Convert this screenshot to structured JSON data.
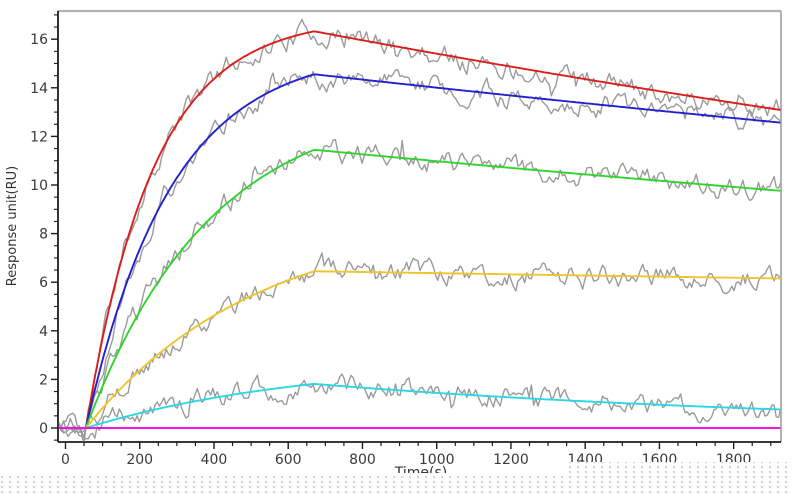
{
  "figure": {
    "description_label": "SPR sensorgram with kinetic fit curves over noisy response traces"
  },
  "colors": {
    "axis": "#1c1c1c",
    "frame_border": "#b2b2b2",
    "tick_text": "#3a3a3a",
    "title_text": "#333333",
    "gray_trace": "#9b9b9b",
    "pattern_dot_dark": "#c6c6c6",
    "pattern_dot_light": "#dcdcdc",
    "plot_background": "#ffffff"
  },
  "chart_data": {
    "type": "line",
    "title": "",
    "xlabel": "Time(s)",
    "ylabel": "Response unit(RU)",
    "xlim": [
      -23,
      1929
    ],
    "ylim": [
      -0.58,
      17.2
    ],
    "x_major_ticks": [
      0,
      200,
      400,
      600,
      800,
      1000,
      1200,
      1400,
      1600,
      1800
    ],
    "x_minor_step": 50,
    "x_minor_range": [
      50,
      1900
    ],
    "y_major_ticks": [
      0,
      2,
      4,
      6,
      8,
      10,
      12,
      14,
      16
    ],
    "y_minor_step": 0.5,
    "y_minor_range": [
      -0.5,
      17
    ],
    "grid": false,
    "legend": null,
    "association_start_s": 55,
    "association_end_s": 670,
    "series": [
      {
        "name": "fit-curve-red",
        "color": "#dd1c1c",
        "model": {
          "t0": 55,
          "t1": 670,
          "Req": 16.9,
          "kobs": 0.0055,
          "kd": 0.000176
        },
        "points": [
          [
            55,
            0
          ],
          [
            150,
            6.9
          ],
          [
            250,
            11.1
          ],
          [
            350,
            13.6
          ],
          [
            450,
            15.0
          ],
          [
            550,
            15.8
          ],
          [
            670,
            16.3
          ],
          [
            900,
            15.7
          ],
          [
            1200,
            14.9
          ],
          [
            1500,
            14.1
          ],
          [
            1935,
            13.1
          ]
        ]
      },
      {
        "name": "fit-curve-blue",
        "color": "#2121cf",
        "model": {
          "t0": 55,
          "t1": 670,
          "Req": 15.6,
          "kobs": 0.0044,
          "kd": 0.000117
        },
        "points": [
          [
            55,
            0
          ],
          [
            150,
            5.3
          ],
          [
            250,
            9.0
          ],
          [
            350,
            11.3
          ],
          [
            450,
            12.9
          ],
          [
            550,
            13.8
          ],
          [
            670,
            14.6
          ],
          [
            900,
            14.2
          ],
          [
            1200,
            13.7
          ],
          [
            1500,
            13.2
          ],
          [
            1935,
            12.5
          ]
        ]
      },
      {
        "name": "fit-curve-green",
        "color": "#2ed52e",
        "model": {
          "t0": 55,
          "t1": 670,
          "Req": 13.6,
          "kobs": 0.003,
          "kd": 0.000127
        },
        "points": [
          [
            55,
            0
          ],
          [
            150,
            3.4
          ],
          [
            250,
            6.0
          ],
          [
            350,
            8.0
          ],
          [
            450,
            9.4
          ],
          [
            550,
            10.5
          ],
          [
            670,
            11.5
          ],
          [
            900,
            11.1
          ],
          [
            1200,
            10.7
          ],
          [
            1500,
            10.3
          ],
          [
            1935,
            9.8
          ]
        ]
      },
      {
        "name": "fit-curve-yellow",
        "color": "#eec52b",
        "model": {
          "t0": 55,
          "t1": 670,
          "Req": 8.7,
          "kobs": 0.0022,
          "kd": 3.75e-05
        },
        "points": [
          [
            55,
            0
          ],
          [
            150,
            1.6
          ],
          [
            250,
            3.0
          ],
          [
            350,
            4.2
          ],
          [
            450,
            5.1
          ],
          [
            550,
            5.8
          ],
          [
            670,
            6.5
          ],
          [
            900,
            6.4
          ],
          [
            1200,
            6.3
          ],
          [
            1500,
            6.3
          ],
          [
            1935,
            6.2
          ]
        ]
      },
      {
        "name": "fit-curve-cyan",
        "color": "#2bd7e6",
        "model": {
          "t0": 55,
          "t1": 670,
          "Req": 2.8,
          "kobs": 0.0017,
          "kd": 0.00069
        },
        "points": [
          [
            55,
            0
          ],
          [
            150,
            0.4
          ],
          [
            250,
            0.8
          ],
          [
            350,
            1.1
          ],
          [
            450,
            1.4
          ],
          [
            550,
            1.6
          ],
          [
            670,
            1.8
          ],
          [
            900,
            1.6
          ],
          [
            1200,
            1.3
          ],
          [
            1500,
            1.0
          ],
          [
            1935,
            0.8
          ]
        ]
      },
      {
        "name": "baseline-magenta",
        "color": "#ef14e2",
        "model": {
          "t0": 55,
          "t1": 670,
          "Req": 0,
          "kobs": 0.002,
          "kd": 0
        },
        "points": [
          [
            -15,
            0
          ],
          [
            1935,
            0
          ]
        ]
      }
    ],
    "noise_traces": {
      "color": "#9b9b9b",
      "amplitude_ru": 0.27,
      "count": 5,
      "follows_series": [
        "fit-curve-red",
        "fit-curve-blue",
        "fit-curve-green",
        "fit-curve-yellow",
        "fit-curve-cyan"
      ],
      "baseline_start_s": -17
    }
  }
}
